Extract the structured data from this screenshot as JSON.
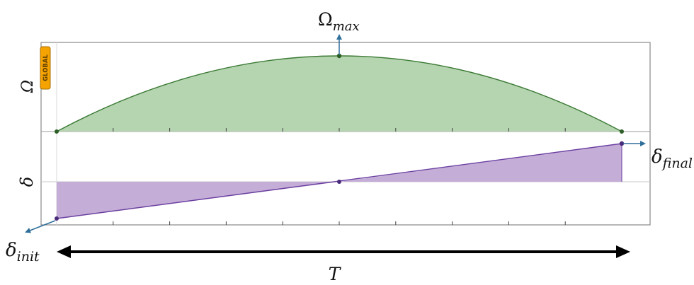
{
  "badge": {
    "text": "GLOBAL",
    "color": "#f5a300"
  },
  "labels": {
    "omega_axis": "Ω",
    "delta_axis": "δ",
    "omega_max": {
      "base": "Ω",
      "sub": "max"
    },
    "delta_final": {
      "base": "δ",
      "sub": "final"
    },
    "delta_init": {
      "base": "δ",
      "sub": "init"
    },
    "duration": "T"
  },
  "colors": {
    "omega_fill": "#b5d4b0",
    "omega_line": "#3b7a34",
    "delta_fill": "#c4aed8",
    "delta_line": "#6b3fa0",
    "arrow": "#2f6f9a",
    "frame": "#888888"
  },
  "icons": {
    "duration_arrow": "double-headed-arrow",
    "pointer_arrow": "arrow"
  }
}
